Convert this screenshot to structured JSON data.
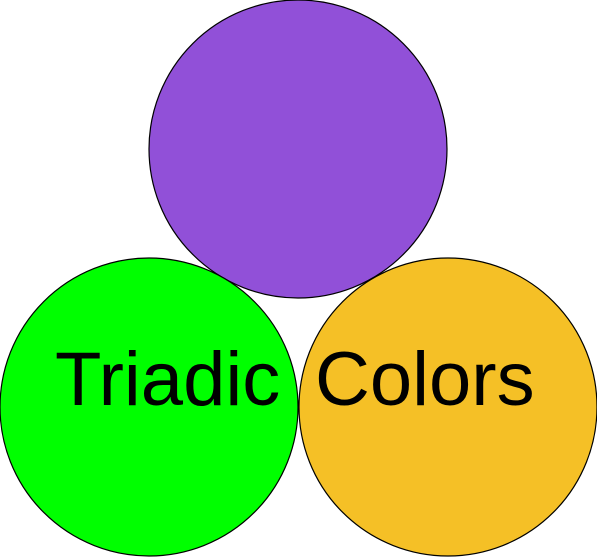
{
  "diagram": {
    "words": [
      "Triadic",
      "Colors"
    ],
    "circles": [
      {
        "name": "purple",
        "color": "#9150D8"
      },
      {
        "name": "green",
        "color": "#00FF00"
      },
      {
        "name": "gold",
        "color": "#F5C026"
      }
    ],
    "outline_color": "#000000",
    "background": "#FFFFFF"
  }
}
